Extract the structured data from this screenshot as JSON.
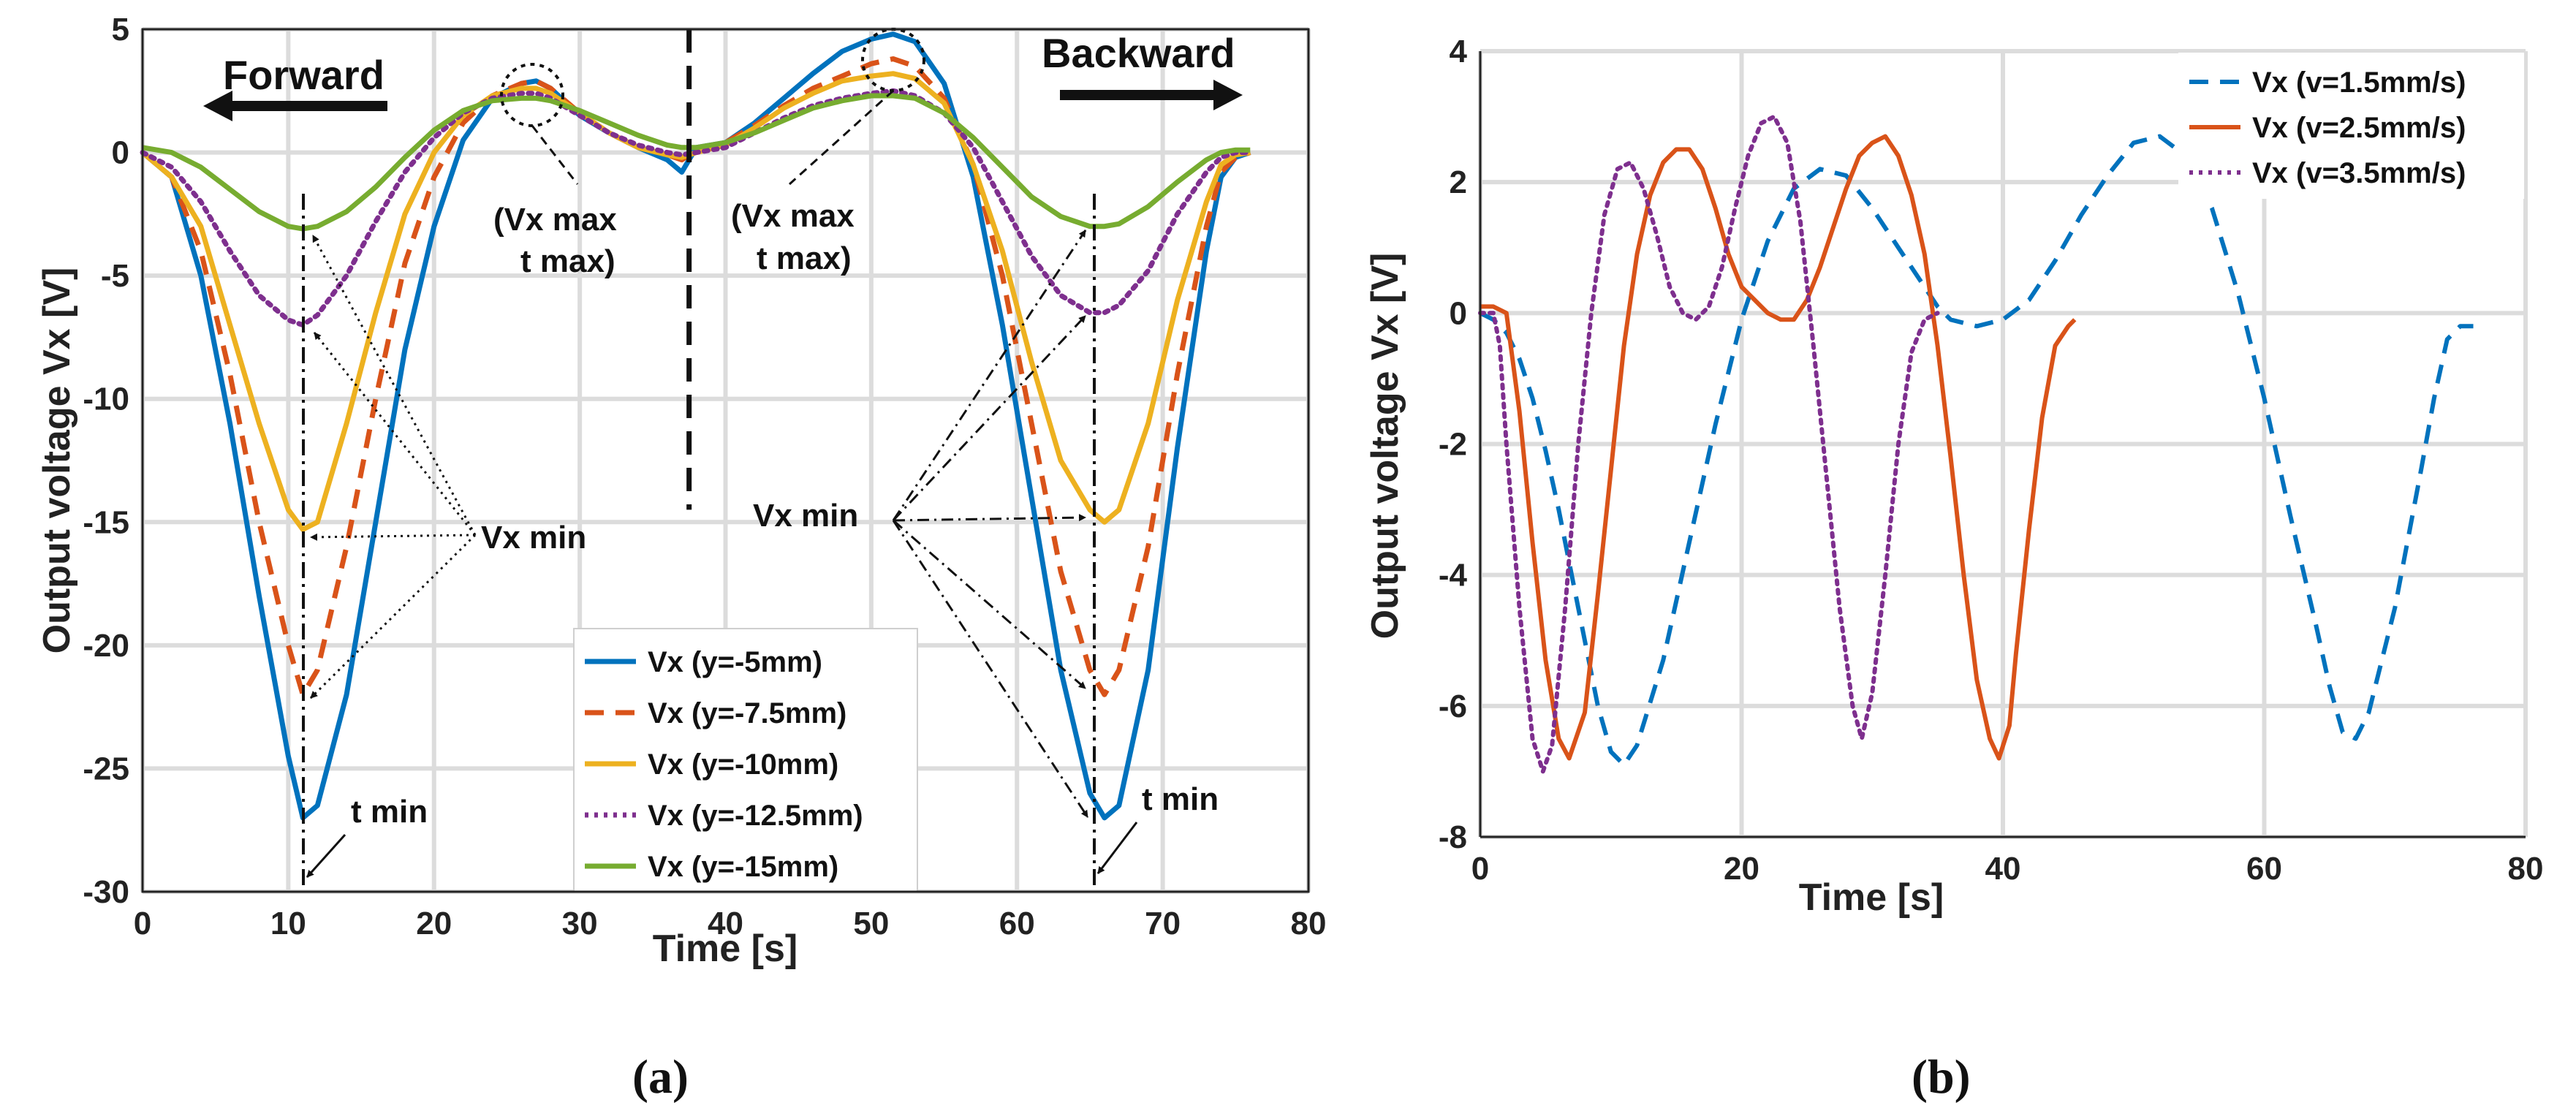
{
  "chart_data": [
    {
      "panel": "(a)",
      "type": "line",
      "xlabel": "Time [s]",
      "ylabel": "Output voltage Vx [V]",
      "xlim": [
        0,
        80
      ],
      "ylim": [
        -30,
        5
      ],
      "xticks": [
        0,
        10,
        20,
        30,
        40,
        50,
        60,
        70,
        80
      ],
      "yticks": [
        -30,
        -25,
        -20,
        -15,
        -10,
        -5,
        0,
        5
      ],
      "grid": true,
      "legend_position": "bottom-center",
      "divider_x": 37.5,
      "series": [
        {
          "name": "Vx (y=-5mm)",
          "color": "#0072BD",
          "style": "solid",
          "x": [
            0,
            2,
            4,
            6,
            8,
            10,
            11,
            12,
            14,
            16,
            18,
            20,
            22,
            24,
            26,
            27,
            28,
            30,
            32,
            34,
            36,
            37,
            38,
            40,
            42,
            44,
            46,
            48,
            50,
            51.5,
            53,
            55,
            57,
            59,
            61,
            63,
            65,
            66,
            67,
            69,
            71,
            73,
            74,
            75,
            76
          ],
          "y": [
            0,
            -1,
            -5,
            -11,
            -18,
            -24.5,
            -27,
            -26.5,
            -22,
            -15,
            -8,
            -3,
            0.5,
            2.2,
            2.8,
            2.9,
            2.6,
            1.5,
            0.8,
            0.2,
            -0.3,
            -0.8,
            0.2,
            0.4,
            1.2,
            2.2,
            3.2,
            4.1,
            4.6,
            4.8,
            4.5,
            2.8,
            -1,
            -7,
            -14,
            -21,
            -26,
            -27,
            -26.5,
            -21,
            -12,
            -4,
            -1,
            -0.2,
            0
          ]
        },
        {
          "name": "Vx (y=-7.5mm)",
          "color": "#D95319",
          "style": "dashed",
          "x": [
            0,
            2,
            4,
            6,
            8,
            10,
            11,
            12,
            14,
            16,
            18,
            20,
            22,
            24,
            26,
            27,
            28,
            30,
            32,
            34,
            36,
            37,
            38,
            40,
            42,
            44,
            46,
            48,
            50,
            51.5,
            53,
            55,
            57,
            59,
            61,
            63,
            65,
            66,
            67,
            69,
            71,
            73,
            74,
            75,
            76
          ],
          "y": [
            0,
            -1,
            -4,
            -9,
            -15,
            -20,
            -22,
            -21,
            -16,
            -10,
            -4.5,
            -1,
            1.2,
            2.3,
            2.8,
            2.9,
            2.6,
            1.6,
            0.8,
            0.2,
            -0.1,
            -0.3,
            0.1,
            0.4,
            1.1,
            1.9,
            2.6,
            3.1,
            3.6,
            3.8,
            3.5,
            2.2,
            -0.5,
            -5,
            -11,
            -17,
            -21,
            -22,
            -21,
            -16,
            -9,
            -3,
            -0.8,
            -0.2,
            0
          ]
        },
        {
          "name": "Vx (y=-10mm)",
          "color": "#EDB120",
          "style": "solid",
          "x": [
            0,
            2,
            4,
            6,
            8,
            10,
            11,
            12,
            14,
            16,
            18,
            20,
            22,
            24,
            26,
            27,
            28,
            30,
            32,
            34,
            36,
            37,
            38,
            40,
            42,
            44,
            46,
            48,
            50,
            51.5,
            53,
            55,
            57,
            59,
            61,
            63,
            65,
            66,
            67,
            69,
            71,
            73,
            74,
            75,
            76
          ],
          "y": [
            0,
            -1,
            -3,
            -7,
            -11,
            -14.5,
            -15.3,
            -15,
            -11,
            -6.5,
            -2.5,
            0,
            1.5,
            2.3,
            2.6,
            2.6,
            2.4,
            1.6,
            0.8,
            0.2,
            -0.1,
            -0.2,
            0,
            0.3,
            1,
            1.8,
            2.4,
            2.9,
            3.1,
            3.2,
            3.0,
            2.0,
            -0.5,
            -4,
            -8.5,
            -12.5,
            -14.5,
            -15,
            -14.5,
            -11,
            -6,
            -2,
            -0.5,
            -0.1,
            0
          ]
        },
        {
          "name": "Vx (y=-12.5mm)",
          "color": "#7E2F8E",
          "style": "dotted",
          "x": [
            0,
            2,
            4,
            6,
            8,
            10,
            11,
            12,
            14,
            16,
            18,
            20,
            22,
            24,
            26,
            27,
            28,
            30,
            32,
            34,
            36,
            37,
            38,
            40,
            42,
            44,
            46,
            48,
            50,
            51.5,
            53,
            55,
            57,
            59,
            61,
            63,
            65,
            66,
            67,
            69,
            71,
            73,
            74,
            75,
            76
          ],
          "y": [
            0,
            -0.6,
            -2,
            -4,
            -5.8,
            -6.8,
            -7,
            -6.6,
            -5,
            -2.8,
            -0.8,
            0.6,
            1.6,
            2.2,
            2.4,
            2.4,
            2.2,
            1.5,
            0.8,
            0.3,
            0,
            -0.1,
            0,
            0.2,
            0.8,
            1.4,
            1.9,
            2.2,
            2.4,
            2.5,
            2.3,
            1.6,
            0.2,
            -2,
            -4.2,
            -5.8,
            -6.5,
            -6.5,
            -6.2,
            -4.8,
            -2.5,
            -0.8,
            -0.2,
            0,
            0
          ]
        },
        {
          "name": "Vx (y=-15mm)",
          "color": "#77AC30",
          "style": "solid",
          "x": [
            0,
            2,
            4,
            6,
            8,
            10,
            11,
            12,
            14,
            16,
            18,
            20,
            22,
            24,
            26,
            27,
            28,
            30,
            32,
            34,
            36,
            37,
            38,
            40,
            42,
            44,
            46,
            48,
            50,
            51.5,
            53,
            55,
            57,
            59,
            61,
            63,
            65,
            66,
            67,
            69,
            71,
            73,
            74,
            75,
            76
          ],
          "y": [
            0.2,
            0,
            -0.6,
            -1.5,
            -2.4,
            -3,
            -3.1,
            -3,
            -2.4,
            -1.4,
            -0.2,
            0.9,
            1.7,
            2.1,
            2.2,
            2.2,
            2.1,
            1.7,
            1.2,
            0.7,
            0.3,
            0.2,
            0.2,
            0.4,
            0.8,
            1.3,
            1.8,
            2.1,
            2.3,
            2.3,
            2.2,
            1.6,
            0.6,
            -0.6,
            -1.8,
            -2.6,
            -3,
            -3,
            -2.9,
            -2.2,
            -1.2,
            -0.3,
            0,
            0.1,
            0.1
          ]
        }
      ],
      "annotations": {
        "forward": "Forward",
        "backward": "Backward",
        "vx_max_line1": "(Vx max",
        "vx_max_line2": "t max)",
        "vx_min": "Vx min",
        "t_min": "t min"
      }
    },
    {
      "panel": "(b)",
      "type": "line",
      "xlabel": "Time [s]",
      "ylabel": "Output voltage Vx [V]",
      "xlim": [
        0,
        80
      ],
      "ylim": [
        -8,
        4
      ],
      "xticks": [
        0,
        20,
        40,
        60,
        80
      ],
      "yticks": [
        -8,
        -6,
        -4,
        -2,
        0,
        2,
        4
      ],
      "grid": true,
      "legend_position": "top-right",
      "series": [
        {
          "name": "Vx (v=1.5mm/s)",
          "color": "#0072BD",
          "style": "dashed",
          "x": [
            0,
            1,
            2,
            3,
            4,
            5,
            6,
            7,
            8,
            9,
            10,
            11,
            12,
            14,
            16,
            18,
            20,
            22,
            24,
            26,
            28,
            30,
            32,
            34,
            35,
            36,
            37,
            38,
            40,
            42,
            44,
            46,
            48,
            50,
            52,
            54,
            56,
            58,
            60,
            62,
            64,
            65,
            66,
            67,
            68,
            70,
            72,
            73,
            74,
            75,
            76
          ],
          "y": [
            0,
            -0.1,
            -0.3,
            -0.7,
            -1.3,
            -2.1,
            -3,
            -4,
            -5,
            -6,
            -6.7,
            -6.9,
            -6.6,
            -5.3,
            -3.5,
            -1.7,
            -0.1,
            1.1,
            1.9,
            2.2,
            2.1,
            1.6,
            1,
            0.4,
            0.1,
            -0.1,
            -0.15,
            -0.2,
            -0.1,
            0.2,
            0.8,
            1.5,
            2.1,
            2.6,
            2.7,
            2.4,
            1.6,
            0.3,
            -1.3,
            -3.1,
            -4.8,
            -5.7,
            -6.4,
            -6.5,
            -6.1,
            -4.5,
            -2.4,
            -1.3,
            -0.4,
            -0.2,
            -0.2
          ]
        },
        {
          "name": "Vx (v=2.5mm/s)",
          "color": "#D95319",
          "style": "solid",
          "x": [
            0,
            1,
            2,
            3,
            4,
            5,
            6,
            6.8,
            8,
            9,
            10,
            11,
            12,
            13,
            14,
            15,
            16,
            17,
            18,
            19,
            20,
            21,
            22,
            23,
            24,
            25,
            26,
            27,
            28,
            29,
            30,
            31,
            32,
            33,
            34,
            35,
            36,
            37,
            38,
            39,
            39.7,
            40.5,
            41,
            42,
            43,
            44,
            45,
            45.5
          ],
          "y": [
            0.1,
            0.1,
            0,
            -1.5,
            -3.5,
            -5.3,
            -6.5,
            -6.8,
            -6.1,
            -4.3,
            -2.4,
            -0.5,
            0.9,
            1.8,
            2.3,
            2.5,
            2.5,
            2.2,
            1.6,
            0.9,
            0.4,
            0.2,
            0.0,
            -0.1,
            -0.1,
            0.2,
            0.7,
            1.3,
            1.9,
            2.4,
            2.6,
            2.7,
            2.4,
            1.8,
            0.9,
            -0.5,
            -2.2,
            -4,
            -5.6,
            -6.5,
            -6.8,
            -6.3,
            -5.2,
            -3.3,
            -1.6,
            -0.5,
            -0.2,
            -0.1
          ]
        },
        {
          "name": "Vx (v=3.5mm/s)",
          "color": "#7E2F8E",
          "style": "dotted",
          "x": [
            0,
            1,
            1.5,
            2,
            3,
            4,
            4.8,
            5.5,
            6.5,
            7.5,
            8.5,
            9.5,
            10.5,
            11.5,
            12.5,
            13.5,
            14.5,
            15.5,
            16.5,
            17.5,
            18.5,
            19.5,
            20.5,
            21.5,
            22.5,
            23.5,
            24.5,
            25.5,
            26.5,
            27.5,
            28.5,
            29.2,
            30,
            31,
            32,
            33,
            34,
            35
          ],
          "y": [
            0,
            0,
            -0.5,
            -2,
            -4.5,
            -6.5,
            -7,
            -6.6,
            -4.5,
            -2,
            0,
            1.5,
            2.2,
            2.3,
            1.9,
            1.2,
            0.4,
            0,
            -0.1,
            0.1,
            0.7,
            1.6,
            2.4,
            2.9,
            3.0,
            2.6,
            1.4,
            -0.5,
            -2.5,
            -4.5,
            -6,
            -6.5,
            -5.8,
            -4,
            -2,
            -0.6,
            -0.1,
            0
          ]
        }
      ]
    }
  ],
  "captions": {
    "a": "(a)",
    "b": "(b)"
  }
}
